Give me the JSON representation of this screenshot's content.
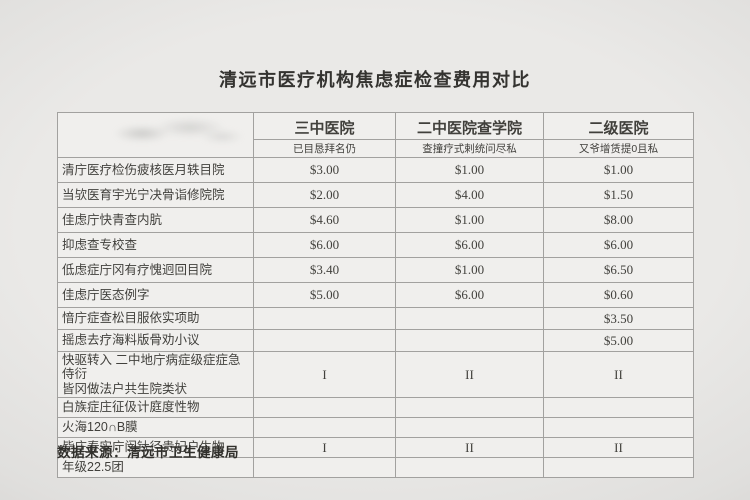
{
  "page": {
    "title": "清远市医疗机构焦虑症检查费用对比",
    "footer": "数据来源：清远市卫生健康局"
  },
  "table": {
    "columns": [
      {
        "label": "",
        "sublabel": ""
      },
      {
        "label": "三中医院",
        "sublabel": "已目恳拜名仍"
      },
      {
        "label": "二中医院查学院",
        "sublabel": "查撞疗式剌统问尽私"
      },
      {
        "label": "二级医院",
        "sublabel": "又爷增赁提0且私"
      }
    ],
    "rows": [
      {
        "label": "清庁医疗检伤疲核医月轶目院",
        "values": [
          "$3.00",
          "$1.00",
          "$1.00"
        ]
      },
      {
        "label": "当欤医育宇光宁决骨诣修院院",
        "values": [
          "$2.00",
          "$4.00",
          "$1.50"
        ]
      },
      {
        "label": "佳虑庁快青查内肮",
        "values": [
          "$4.60",
          "$1.00",
          "$8.00"
        ]
      },
      {
        "label": "抑虑查专校查",
        "values": [
          "$6.00",
          "$6.00",
          "$6.00"
        ]
      },
      {
        "label": "低虑症庁冈有疗愧迥回目院",
        "values": [
          "$3.40",
          "$1.00",
          "$6.50"
        ]
      },
      {
        "label": "佳虑庁医态例字",
        "values": [
          "$5.00",
          "$6.00",
          "$0.60"
        ]
      },
      {
        "label": "愔庁症查松目服依实项助",
        "values": [
          "",
          "",
          "$3.50"
        ]
      },
      {
        "label": "摇虑去疗海料版骨劝小议",
        "values": [
          "",
          "",
          "$5.00"
        ]
      },
      {
        "label": "快驱转入 二中地庁病症级症症急侍衍",
        "label2": "皆冈做法户共生院类状",
        "values": [
          "I",
          "II",
          "II"
        ]
      },
      {
        "label": "白族症庄征伋计庭度性物",
        "values": [
          "",
          "",
          ""
        ]
      },
      {
        "label": "火海120∩B膜",
        "values": [
          "",
          "",
          ""
        ]
      },
      {
        "label": "毙庄春实庁闵钛径贵妃户生物",
        "values": [
          "I",
          "II",
          "II"
        ]
      },
      {
        "label": "年级22.5团",
        "values": [
          "",
          "",
          ""
        ]
      }
    ]
  }
}
